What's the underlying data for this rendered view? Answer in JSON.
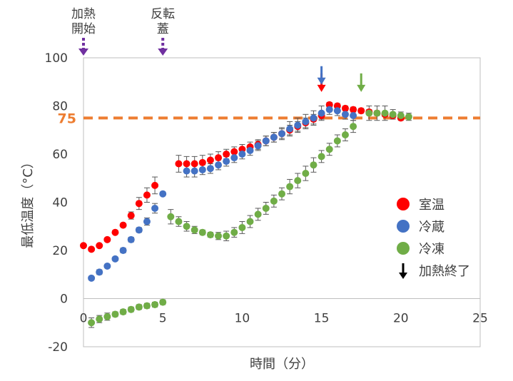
{
  "chart_data": {
    "type": "scatter",
    "xlabel": "時間（分）",
    "ylabel": "最低温度（°C）",
    "xlim": [
      0,
      25
    ],
    "ylim": [
      -20,
      100
    ],
    "xticks": [
      "0",
      "5",
      "10",
      "15",
      "20",
      "25"
    ],
    "yticks": [
      "-20",
      "0",
      "20",
      "40",
      "60",
      "80",
      "100"
    ],
    "grid": false,
    "legend_position": "right",
    "threshold": {
      "value": 75,
      "label": "75",
      "color": "#ED7D31"
    },
    "top_annotations": [
      {
        "x": 0,
        "text": "加熱開始",
        "lines": [
          "加熱",
          "開始"
        ],
        "color": "#7030A0"
      },
      {
        "x": 5,
        "text": "反転蓋",
        "lines": [
          "反転",
          "蓋"
        ],
        "color": "#7030A0"
      }
    ],
    "end_markers": [
      {
        "series": "室温",
        "x": 15.0,
        "y": 87,
        "color": "#FF0000"
      },
      {
        "series": "冷蔵",
        "x": 15.0,
        "y": 90,
        "color": "#4472C4"
      },
      {
        "series": "冷凍",
        "x": 17.5,
        "y": 87,
        "color": "#70AD47"
      }
    ],
    "series": [
      {
        "name": "室温",
        "color": "#FF0000",
        "points": [
          [
            0,
            22,
            0
          ],
          [
            0.5,
            20.5,
            0
          ],
          [
            1,
            22,
            0
          ],
          [
            1.5,
            24.5,
            0
          ],
          [
            2,
            27.5,
            0
          ],
          [
            2.5,
            30.5,
            0
          ],
          [
            3,
            34.5,
            1.5
          ],
          [
            3.5,
            39.5,
            2.5
          ],
          [
            4,
            43,
            3
          ],
          [
            4.5,
            47,
            3.5
          ],
          [
            6,
            56,
            3.5
          ],
          [
            6.5,
            56,
            3
          ],
          [
            7,
            56,
            3
          ],
          [
            7.5,
            56.5,
            3
          ],
          [
            8,
            57.5,
            2.5
          ],
          [
            8.5,
            58.5,
            2.5
          ],
          [
            9,
            60,
            2
          ],
          [
            9.5,
            61,
            2
          ],
          [
            10,
            62,
            2
          ],
          [
            10.5,
            63,
            2
          ],
          [
            11,
            64,
            2
          ],
          [
            11.5,
            65.5,
            2
          ],
          [
            12,
            67,
            2
          ],
          [
            12.5,
            68.5,
            2
          ],
          [
            13,
            70,
            2
          ],
          [
            13.5,
            71.5,
            2
          ],
          [
            14,
            73,
            2
          ],
          [
            14.5,
            74.5,
            2
          ],
          [
            15,
            76,
            1.5
          ],
          [
            15.5,
            80.5,
            1
          ],
          [
            16,
            80,
            1
          ],
          [
            16.5,
            79,
            1
          ],
          [
            17,
            78.5,
            1
          ],
          [
            17.5,
            78,
            1
          ],
          [
            18,
            77.5,
            1
          ],
          [
            18.5,
            77,
            1
          ],
          [
            19,
            76.5,
            1
          ],
          [
            19.5,
            76,
            1
          ],
          [
            20,
            75,
            1
          ]
        ]
      },
      {
        "name": "冷蔵",
        "color": "#4472C4",
        "points": [
          [
            0.5,
            8.5,
            0
          ],
          [
            1,
            11,
            1
          ],
          [
            1.5,
            13.5,
            0
          ],
          [
            2,
            16.5,
            0
          ],
          [
            2.5,
            20,
            1
          ],
          [
            3,
            24.5,
            1
          ],
          [
            3.5,
            28.5,
            1
          ],
          [
            4,
            32,
            1.5
          ],
          [
            4.5,
            37.5,
            2
          ],
          [
            5,
            43.5,
            0
          ],
          [
            6.5,
            53,
            2.5
          ],
          [
            7,
            53,
            2.5
          ],
          [
            7.5,
            53.5,
            2
          ],
          [
            8,
            54,
            2
          ],
          [
            8.5,
            55.5,
            2
          ],
          [
            9,
            57,
            2
          ],
          [
            9.5,
            58.5,
            2
          ],
          [
            10,
            60,
            2
          ],
          [
            10.5,
            61.5,
            2
          ],
          [
            11,
            63.5,
            2
          ],
          [
            11.5,
            65.5,
            2
          ],
          [
            12,
            67,
            2
          ],
          [
            12.5,
            68.5,
            2.5
          ],
          [
            13,
            70.5,
            3
          ],
          [
            13.5,
            72,
            3
          ],
          [
            14,
            73.5,
            3
          ],
          [
            14.5,
            75,
            3
          ],
          [
            15,
            77,
            3
          ],
          [
            15.5,
            78.5,
            2
          ],
          [
            16,
            78,
            2
          ],
          [
            16.5,
            76.5,
            2
          ],
          [
            17,
            76,
            2
          ]
        ]
      },
      {
        "name": "冷凍",
        "color": "#70AD47",
        "points": [
          [
            0.5,
            -10,
            2
          ],
          [
            1,
            -8.5,
            1.5
          ],
          [
            1.5,
            -7.5,
            1.5
          ],
          [
            2,
            -6.5,
            1
          ],
          [
            2.5,
            -5.5,
            1
          ],
          [
            3,
            -4.5,
            1
          ],
          [
            3.5,
            -3.5,
            1
          ],
          [
            4,
            -3,
            1
          ],
          [
            4.5,
            -2.5,
            1
          ],
          [
            5,
            -1.5,
            1
          ],
          [
            5.5,
            34,
            3
          ],
          [
            6,
            32,
            2
          ],
          [
            6.5,
            30,
            2
          ],
          [
            7,
            28.5,
            1.5
          ],
          [
            7.5,
            27.5,
            1
          ],
          [
            8,
            26.5,
            1
          ],
          [
            8.5,
            26,
            1.5
          ],
          [
            9,
            26,
            2
          ],
          [
            9.5,
            27.5,
            2
          ],
          [
            10,
            29.5,
            2.5
          ],
          [
            10.5,
            32,
            2.5
          ],
          [
            11,
            35,
            2.5
          ],
          [
            11.5,
            37.5,
            2.5
          ],
          [
            12,
            40.5,
            2.5
          ],
          [
            12.5,
            43.5,
            2.5
          ],
          [
            13,
            46.5,
            3
          ],
          [
            13.5,
            49,
            3
          ],
          [
            14,
            52,
            3
          ],
          [
            14.5,
            55.5,
            3
          ],
          [
            15,
            59,
            2.5
          ],
          [
            15.5,
            62,
            2.5
          ],
          [
            16,
            65.5,
            2.5
          ],
          [
            16.5,
            68,
            2.5
          ],
          [
            17,
            71.5,
            2.5
          ],
          [
            18,
            77,
            3
          ],
          [
            18.5,
            77,
            3
          ],
          [
            19,
            77,
            3
          ],
          [
            19.5,
            76.5,
            2
          ],
          [
            20,
            76,
            1.5
          ],
          [
            20.5,
            75.5,
            1.5
          ]
        ]
      }
    ],
    "legend": [
      {
        "label": "室温",
        "color": "#FF0000",
        "kind": "dot"
      },
      {
        "label": "冷蔵",
        "color": "#4472C4",
        "kind": "dot"
      },
      {
        "label": "冷凍",
        "color": "#70AD47",
        "kind": "dot"
      },
      {
        "label": "加熱終了",
        "color": "#000000",
        "kind": "arrow"
      }
    ]
  }
}
